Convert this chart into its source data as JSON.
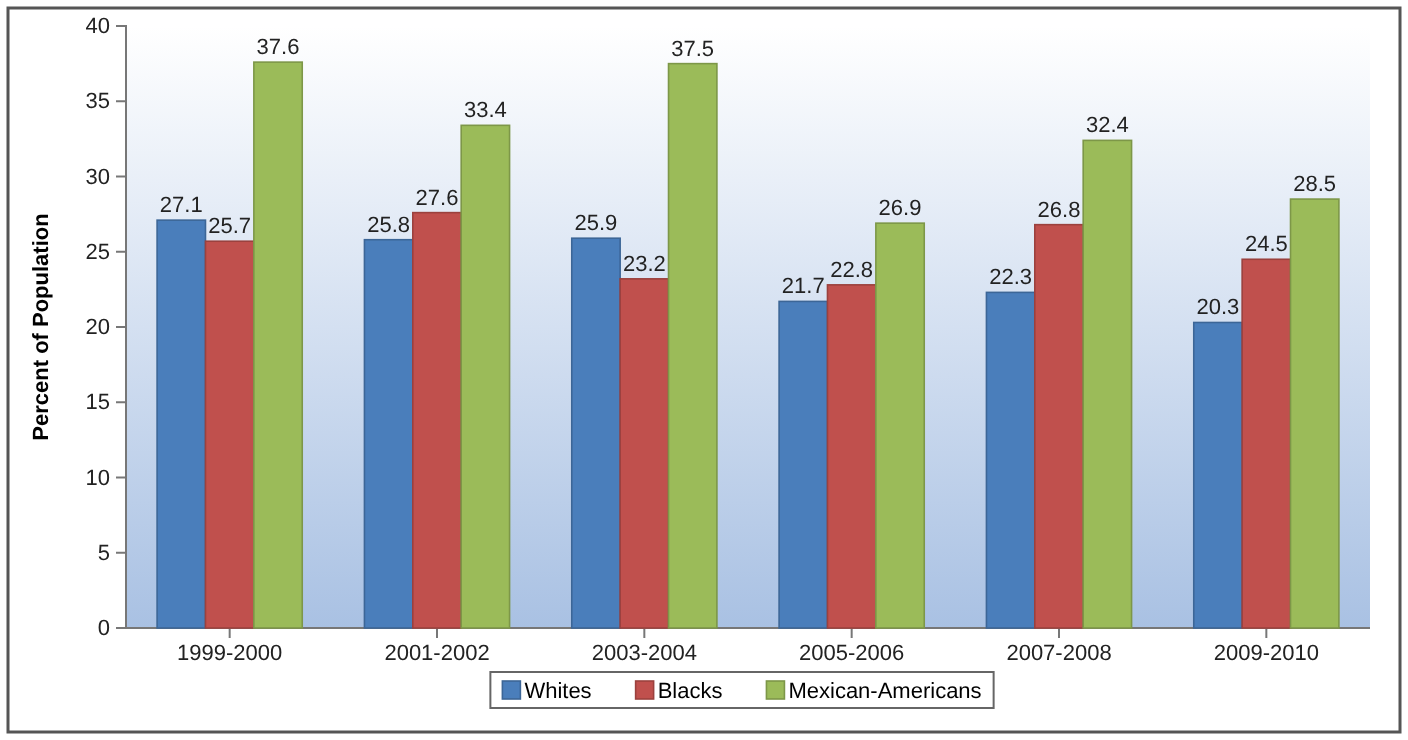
{
  "chart_data": {
    "type": "bar",
    "ylabel": "Percent of Population",
    "categories": [
      "1999-2000",
      "2001-2002",
      "2003-2004",
      "2005-2006",
      "2007-2008",
      "2009-2010"
    ],
    "series": [
      {
        "name": "Whites",
        "color": "#4a7ebb",
        "values": [
          27.1,
          25.8,
          25.9,
          21.7,
          22.3,
          20.3
        ]
      },
      {
        "name": "Blacks",
        "color": "#c0504d",
        "values": [
          25.7,
          27.6,
          23.2,
          22.8,
          26.8,
          24.5
        ]
      },
      {
        "name": "Mexican-Americans",
        "color": "#9bbb59",
        "values": [
          37.6,
          33.4,
          37.5,
          26.9,
          32.4,
          28.5
        ]
      }
    ],
    "ylim": [
      0,
      40
    ],
    "yticks": [
      0,
      5,
      10,
      15,
      20,
      25,
      30,
      35,
      40
    ],
    "data_labels": true,
    "legend": "bottom"
  }
}
